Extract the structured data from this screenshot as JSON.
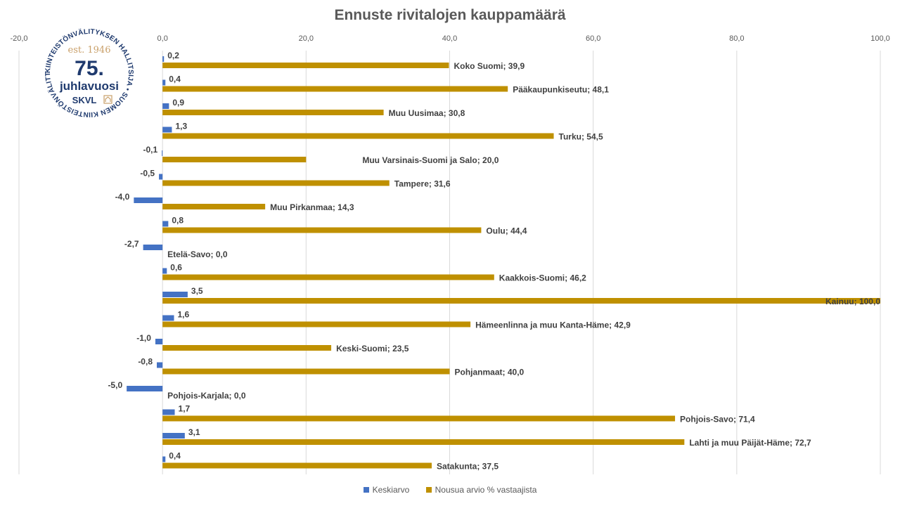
{
  "chart_data": {
    "type": "bar",
    "orientation": "horizontal",
    "title": "Ennuste rivitalojen kauppamäärä",
    "xlim": [
      -20,
      100
    ],
    "xticks": [
      "-20,0",
      "0,0",
      "20,0",
      "40,0",
      "60,0",
      "80,0",
      "100,0"
    ],
    "grid": true,
    "legend_position": "bottom",
    "categories": [
      "Koko Suomi",
      "Pääkaupunkiseutu",
      "Muu Uusimaa",
      "Turku",
      "Muu Varsinais-Suomi ja Salo",
      "Tampere",
      "Muu Pirkanmaa",
      "Oulu",
      "Etelä-Savo",
      "Kaakkois-Suomi",
      "Kainuu",
      "Hämeenlinna ja muu Kanta-Häme",
      "Keski-Suomi",
      "Pohjanmaat",
      "Pohjois-Karjala",
      "Pohjois-Savo",
      "Lahti ja muu Päijät-Häme",
      "Satakunta"
    ],
    "series": [
      {
        "name": "Keskiarvo",
        "color": "#4472c4",
        "values": [
          0.2,
          0.4,
          0.9,
          1.3,
          -0.1,
          -0.5,
          -4.0,
          0.8,
          -2.7,
          0.6,
          3.5,
          1.6,
          -1.0,
          -0.8,
          -5.0,
          1.7,
          3.1,
          0.4
        ],
        "labels": [
          "0,2",
          "0,4",
          "0,9",
          "1,3",
          "-0,1",
          "-0,5",
          "-4,0",
          "0,8",
          "-2,7",
          "0,6",
          "3,5",
          "1,6",
          "-1,0",
          "-0,8",
          "-5,0",
          "1,7",
          "3,1",
          "0,4"
        ]
      },
      {
        "name": "Nousua arvio % vastaajista",
        "color": "#bf9000",
        "values": [
          39.9,
          48.1,
          30.8,
          54.5,
          20.0,
          31.6,
          14.3,
          44.4,
          0.0,
          46.2,
          100.0,
          42.9,
          23.5,
          40.0,
          0.0,
          71.4,
          72.7,
          37.5
        ],
        "labels": [
          "Koko Suomi; 39,9",
          "Pääkaupunkiseutu; 48,1",
          "Muu Uusimaa; 30,8",
          "Turku; 54,5",
          "Muu Varsinais-Suomi ja Salo; 20,0",
          "Tampere; 31,6",
          "Muu Pirkanmaa;  14,3",
          "Oulu; 44,4",
          "Etelä-Savo; 0,0",
          "Kaakkois-Suomi; 46,2",
          "Kainuu; 100,0",
          "Hämeenlinna ja muu Kanta-Häme; 42,9",
          "Keski-Suomi; 23,5",
          "Pohjanmaat; 40,0",
          "Pohjois-Karjala; 0,0",
          "Pohjois-Savo; 71,4",
          "Lahti ja muu Päijät-Häme;  72,7",
          "Satakunta; 37,5"
        ]
      }
    ]
  },
  "logo": {
    "ring_text": "KIINTEISTÖNVÄLITYKSEN HALLITSIJA • SUOMEN KIINTEISTÖNVÄLITTÄJÄT RY •",
    "est": "est. 1946",
    "number": "75.",
    "line": "juhlavuosi",
    "brand": "SKVL",
    "color": "#1f3a6e",
    "accent": "#c9a06a"
  }
}
